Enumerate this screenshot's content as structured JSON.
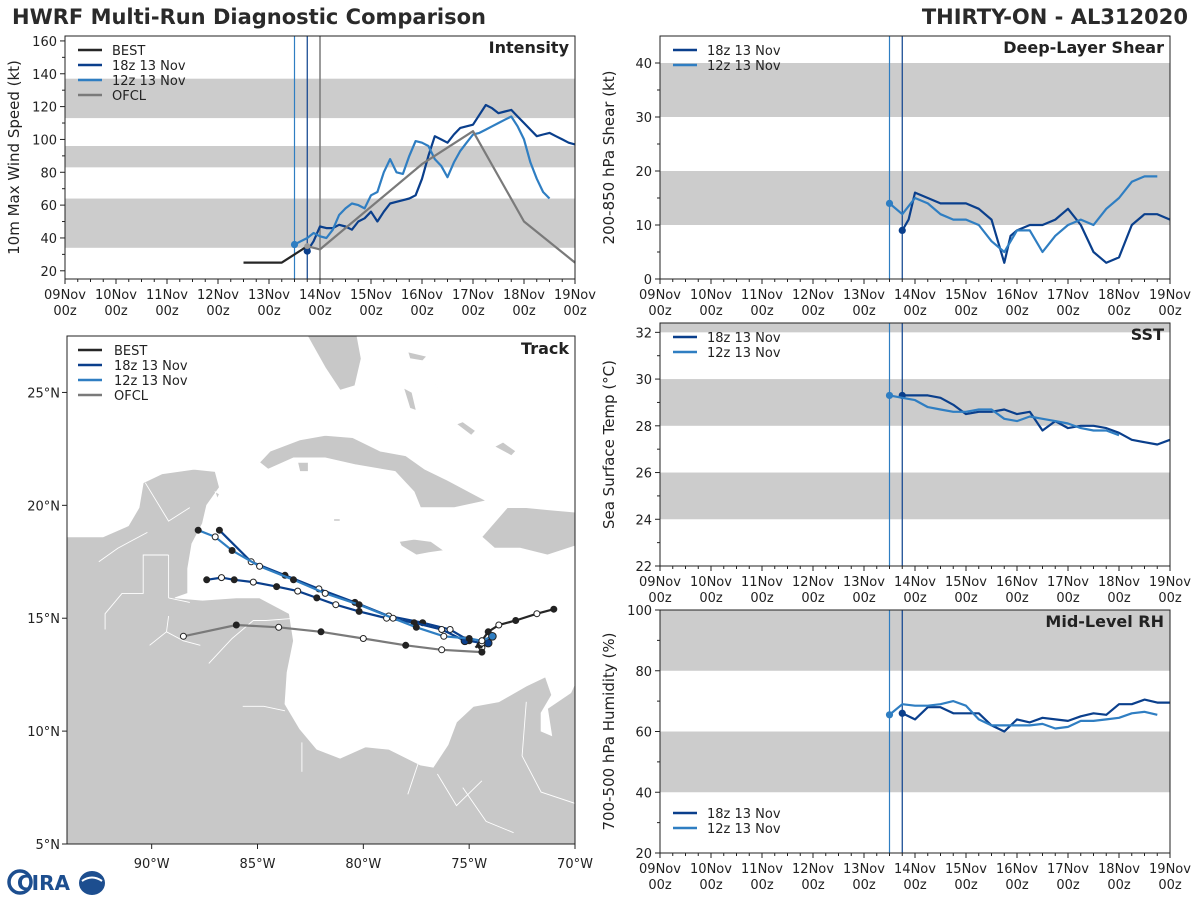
{
  "header": {
    "title": "HWRF Multi-Run Diagnostic Comparison",
    "storm": "THIRTY-ON - AL312020"
  },
  "logo": {
    "text": "CIRA"
  },
  "colors": {
    "best": "#262626",
    "run18": "#0a3f8c",
    "run12": "#2f7ec2",
    "ofcl": "#7a7a7a",
    "band": "#cccccc",
    "land": "#c8c8c8"
  },
  "time_axis": {
    "range": [
      0,
      240
    ],
    "tick_hours": [
      0,
      24,
      48,
      72,
      96,
      120,
      144,
      168,
      192,
      216,
      240
    ],
    "tick_days": [
      "09Nov",
      "10Nov",
      "11Nov",
      "12Nov",
      "13Nov",
      "14Nov",
      "15Nov",
      "16Nov",
      "17Nov",
      "18Nov",
      "19Nov"
    ],
    "tick_hour_label": "00z",
    "init_lines": [
      108,
      114
    ]
  },
  "chart_data": [
    {
      "id": "intensity",
      "type": "line",
      "panel_label": "Intensity",
      "ylabel": "10m Max Wind Speed (kt)",
      "ylim": [
        15,
        163
      ],
      "yticks": [
        20,
        40,
        60,
        80,
        100,
        120,
        140,
        160
      ],
      "bands": [
        [
          34,
          64
        ],
        [
          83,
          96
        ],
        [
          113,
          137
        ]
      ],
      "extra_vline": 120,
      "legend": [
        "BEST",
        "18z 13 Nov",
        "12z 13 Nov",
        "OFCL"
      ],
      "series": [
        {
          "name": "BEST",
          "key": "best",
          "x": [
            84,
            90,
            96,
            102,
            108,
            114
          ],
          "y": [
            25,
            25,
            25,
            25,
            30,
            35
          ]
        },
        {
          "name": "18z 13 Nov",
          "key": "run18",
          "x": [
            114,
            117,
            120,
            123,
            126,
            129,
            132,
            135,
            138,
            141,
            144,
            147,
            150,
            153,
            156,
            159,
            162,
            165,
            168,
            171,
            174,
            177,
            180,
            183,
            186,
            189,
            192,
            195,
            198,
            201,
            204,
            207,
            210,
            213,
            216,
            219,
            222,
            225,
            228,
            231,
            234,
            237,
            240
          ],
          "y": [
            32,
            38,
            47,
            46,
            46,
            48,
            47,
            45,
            50,
            52,
            56,
            50,
            56,
            61,
            62,
            63,
            64,
            66,
            76,
            90,
            102,
            100,
            98,
            103,
            107,
            108,
            109,
            115,
            121,
            119,
            116,
            117,
            118,
            114,
            110,
            106,
            102,
            103,
            104,
            102,
            100,
            98,
            97
          ]
        },
        {
          "name": "12z 13 Nov",
          "key": "run12",
          "x": [
            108,
            111,
            114,
            117,
            120,
            123,
            126,
            129,
            132,
            135,
            138,
            141,
            144,
            147,
            150,
            153,
            156,
            159,
            162,
            165,
            168,
            171,
            174,
            177,
            180,
            183,
            186,
            189,
            192,
            195,
            198,
            201,
            204,
            207,
            210,
            213,
            216,
            219,
            222,
            225,
            228
          ],
          "y": [
            36,
            38,
            40,
            43,
            41,
            40,
            45,
            54,
            58,
            61,
            60,
            58,
            66,
            68,
            80,
            88,
            80,
            79,
            90,
            99,
            98,
            96,
            88,
            84,
            77,
            86,
            93,
            98,
            103,
            104,
            106,
            108,
            110,
            112,
            114,
            108,
            100,
            86,
            76,
            68,
            64
          ]
        },
        {
          "name": "OFCL",
          "key": "ofcl",
          "x": [
            114,
            120,
            168,
            192,
            216,
            240
          ],
          "y": [
            35,
            33,
            85,
            105,
            50,
            25
          ]
        }
      ]
    },
    {
      "id": "shear",
      "type": "line",
      "panel_label": "Deep-Layer Shear",
      "ylabel": "200-850 hPa Shear (kt)",
      "ylim": [
        0,
        45
      ],
      "yticks": [
        0,
        10,
        20,
        30,
        40
      ],
      "bands": [
        [
          10,
          20
        ],
        [
          30,
          40
        ]
      ],
      "legend": [
        "18z 13 Nov",
        "12z 13 Nov"
      ],
      "series": [
        {
          "name": "18z 13 Nov",
          "key": "run18",
          "x": [
            114,
            117,
            120,
            126,
            132,
            138,
            144,
            150,
            156,
            162,
            165,
            168,
            174,
            180,
            186,
            192,
            198,
            204,
            210,
            216,
            222,
            228,
            234,
            240
          ],
          "y": [
            9,
            11,
            16,
            15,
            14,
            14,
            14,
            13,
            11,
            3,
            8,
            9,
            10,
            10,
            11,
            13,
            10,
            5,
            3,
            4,
            10,
            12,
            12,
            11
          ]
        },
        {
          "name": "12z 13 Nov",
          "key": "run12",
          "x": [
            108,
            114,
            120,
            126,
            132,
            138,
            144,
            150,
            156,
            162,
            168,
            174,
            180,
            186,
            192,
            198,
            204,
            210,
            216,
            222,
            228,
            234
          ],
          "y": [
            14,
            12,
            15,
            14,
            12,
            11,
            11,
            10,
            7,
            5,
            9,
            9,
            5,
            8,
            10,
            11,
            10,
            13,
            15,
            18,
            19,
            19
          ]
        }
      ]
    },
    {
      "id": "sst",
      "type": "line",
      "panel_label": "SST",
      "ylabel": "Sea Surface Temp (°C)",
      "ylim": [
        22,
        32.4
      ],
      "yticks": [
        22,
        24,
        26,
        28,
        30,
        32
      ],
      "bands": [
        [
          24,
          26
        ],
        [
          28,
          30
        ],
        [
          32,
          32.4
        ]
      ],
      "legend": [
        "18z 13 Nov",
        "12z 13 Nov"
      ],
      "series": [
        {
          "name": "18z 13 Nov",
          "key": "run18",
          "x": [
            114,
            120,
            126,
            132,
            138,
            144,
            150,
            156,
            162,
            168,
            174,
            180,
            186,
            192,
            198,
            204,
            210,
            216,
            222,
            228,
            234,
            240
          ],
          "y": [
            29.3,
            29.3,
            29.3,
            29.2,
            28.9,
            28.5,
            28.6,
            28.6,
            28.7,
            28.5,
            28.6,
            27.8,
            28.2,
            27.9,
            28.0,
            28.0,
            27.9,
            27.7,
            27.4,
            27.3,
            27.2,
            27.4
          ]
        },
        {
          "name": "12z 13 Nov",
          "key": "run12",
          "x": [
            108,
            114,
            120,
            126,
            132,
            138,
            144,
            150,
            156,
            162,
            168,
            174,
            180,
            186,
            192,
            198,
            204,
            210,
            216
          ],
          "y": [
            29.3,
            29.2,
            29.1,
            28.8,
            28.7,
            28.6,
            28.6,
            28.7,
            28.7,
            28.3,
            28.2,
            28.4,
            28.3,
            28.2,
            28.1,
            27.9,
            27.8,
            27.8,
            27.6
          ]
        }
      ]
    },
    {
      "id": "rh",
      "type": "line",
      "panel_label": "Mid-Level RH",
      "ylabel": "700-500 hPa Humidity (%)",
      "ylim": [
        20,
        100
      ],
      "yticks": [
        20,
        40,
        60,
        80,
        100
      ],
      "bands": [
        [
          40,
          60
        ],
        [
          80,
          100
        ]
      ],
      "legend": [
        "18z 13 Nov",
        "12z 13 Nov"
      ],
      "series": [
        {
          "name": "18z 13 Nov",
          "key": "run18",
          "x": [
            114,
            120,
            126,
            132,
            138,
            144,
            150,
            156,
            162,
            168,
            174,
            180,
            186,
            192,
            198,
            204,
            210,
            216,
            222,
            228,
            234,
            240
          ],
          "y": [
            66,
            64,
            68,
            68,
            66,
            66,
            66,
            62,
            60,
            64,
            63,
            64.5,
            64,
            63.5,
            65,
            66,
            65.5,
            69,
            69,
            70.5,
            69.5,
            69.5
          ]
        },
        {
          "name": "12z 13 Nov",
          "key": "run12",
          "x": [
            108,
            114,
            120,
            126,
            132,
            138,
            144,
            150,
            156,
            162,
            168,
            174,
            180,
            186,
            192,
            198,
            204,
            210,
            216,
            222,
            228,
            234
          ],
          "y": [
            65.5,
            69,
            68.5,
            68.5,
            69,
            70,
            68.5,
            64,
            62,
            62,
            62,
            62,
            62.5,
            61,
            61.5,
            63.5,
            63.5,
            64,
            64.5,
            66,
            66.5,
            65.5
          ]
        }
      ]
    },
    {
      "id": "track",
      "type": "scatter",
      "panel_label": "Track",
      "xlim": [
        -94,
        -70
      ],
      "ylim": [
        5,
        27.5
      ],
      "xticks": [
        -90,
        -85,
        -80,
        -75,
        -70
      ],
      "xtick_labels": [
        "90°W",
        "85°W",
        "80°W",
        "75°W",
        "70°W"
      ],
      "yticks": [
        5,
        10,
        15,
        20,
        25
      ],
      "ytick_labels": [
        "5°N",
        "10°N",
        "15°N",
        "20°N",
        "25°N"
      ],
      "legend": [
        "BEST",
        "18z 13 Nov",
        "12z 13 Nov",
        "OFCL"
      ],
      "series": [
        {
          "name": "BEST",
          "key": "best",
          "lon": [
            -74.7,
            -74.4,
            -74.1,
            -73.6,
            -72.8,
            -71.8,
            -71.0
          ],
          "lat": [
            13.7,
            14.0,
            14.4,
            14.7,
            14.9,
            15.2,
            15.4
          ]
        },
        {
          "name": "18z 13 Nov",
          "key": "run18",
          "lon": [
            -74.1,
            -74.4,
            -74.5,
            -74.4,
            -75.0,
            -75.9,
            -77.2,
            -78.8,
            -80.4,
            -82.1,
            -83.7,
            -85.3,
            -86.8
          ],
          "lat": [
            13.9,
            13.7,
            13.8,
            13.9,
            14.0,
            14.5,
            14.8,
            15.1,
            15.7,
            16.3,
            16.9,
            17.5,
            18.9
          ]
        },
        {
          "name": "18z 13 Nov (coastal branch)",
          "key": "run18",
          "lon": [
            -75.2,
            -76.3,
            -77.6,
            -78.9,
            -80.2,
            -81.3,
            -82.2,
            -83.1,
            -84.1,
            -85.2,
            -86.1,
            -86.7,
            -87.4
          ],
          "lat": [
            14.0,
            14.5,
            14.8,
            15.0,
            15.3,
            15.6,
            15.9,
            16.2,
            16.4,
            16.6,
            16.7,
            16.8,
            16.7
          ]
        },
        {
          "name": "12z 13 Nov",
          "key": "run12",
          "lon": [
            -73.9,
            -74.4,
            -75.0,
            -76.2,
            -77.5,
            -78.6,
            -80.2,
            -81.8,
            -83.3,
            -84.9,
            -86.2,
            -87.0,
            -87.8
          ],
          "lat": [
            14.2,
            14.0,
            14.1,
            14.2,
            14.6,
            15.0,
            15.6,
            16.1,
            16.7,
            17.3,
            18.0,
            18.6,
            18.9
          ]
        },
        {
          "name": "OFCL",
          "key": "ofcl",
          "lon": [
            -74.4,
            -76.3,
            -78.0,
            -80.0,
            -82.0,
            -84.0,
            -86.0,
            -88.5
          ],
          "lat": [
            13.5,
            13.6,
            13.8,
            14.1,
            14.4,
            14.6,
            14.7,
            14.2
          ]
        }
      ]
    }
  ]
}
